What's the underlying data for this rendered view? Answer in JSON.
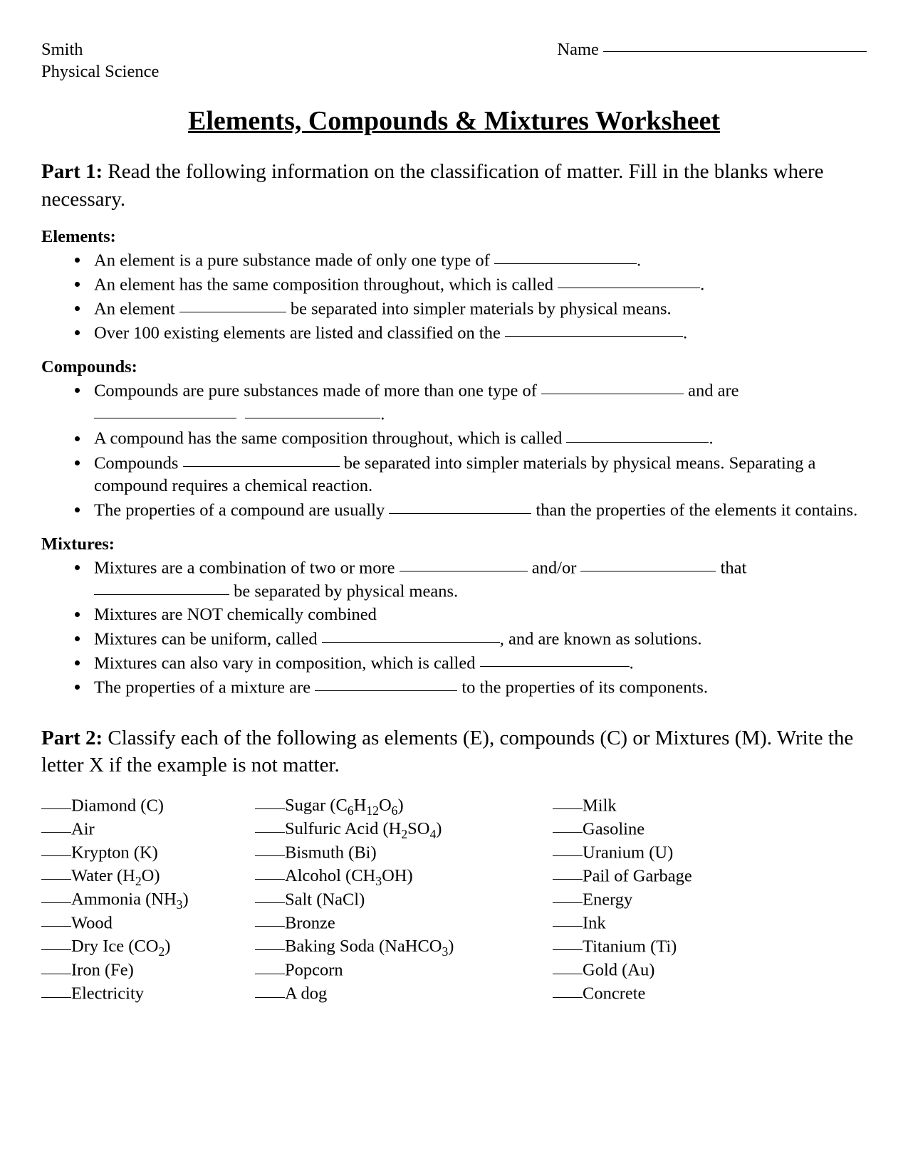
{
  "header": {
    "teacher": "Smith",
    "course": "Physical Science",
    "name_label": "Name"
  },
  "title": "Elements, Compounds & Mixtures Worksheet",
  "part1": {
    "label": "Part 1:",
    "intro": "Read the following information on the classification of matter.  Fill in the blanks where necessary."
  },
  "elements": {
    "heading": "Elements:",
    "b1_a": "An element is a pure substance made of only one type of ",
    "b1_c": ".",
    "b2_a": "An element has the same composition throughout, which is called ",
    "b2_c": ".",
    "b3_a": "An element ",
    "b3_c": " be separated into simpler materials by physical means.",
    "b4_a": "Over 100 existing elements are listed and classified on the ",
    "b4_c": "."
  },
  "compounds": {
    "heading": "Compounds:",
    "b1_a": "Compounds are pure substances made of more than one type of ",
    "b1_c": " and are ",
    "b1_e": ".",
    "b2_a": "A compound has the same composition throughout, which is called ",
    "b2_c": ".",
    "b3_a": "Compounds ",
    "b3_c": " be separated into simpler materials by physical means. Separating a compound requires a chemical reaction.",
    "b4_a": "The properties of a compound are usually ",
    "b4_c": " than the properties of the elements it contains."
  },
  "mixtures": {
    "heading": "Mixtures:",
    "b1_a": "Mixtures are a combination of two or more ",
    "b1_c": " and/or ",
    "b1_e": " that ",
    "b1_g": " be separated by physical means.",
    "b2": "Mixtures are NOT chemically combined",
    "b3_a": "Mixtures can be uniform, called ",
    "b3_c": ", and are known as solutions.",
    "b4_a": "Mixtures can also vary in composition, which is called ",
    "b4_c": ".",
    "b5_a": "The properties of a mixture are ",
    "b5_c": " to the properties of its components."
  },
  "part2": {
    "label": "Part 2:",
    "intro": "Classify each of the following as elements (E), compounds (C) or Mixtures (M).  Write the letter X if the example is not matter.",
    "col1": [
      {
        "html": "Diamond (C)"
      },
      {
        "html": "Air"
      },
      {
        "html": "Krypton (K)"
      },
      {
        "html": "Water (H<sub>2</sub>O)"
      },
      {
        "html": "Ammonia (NH<sub>3</sub>)"
      },
      {
        "html": "Wood"
      },
      {
        "html": "Dry Ice (CO<sub>2</sub>)"
      },
      {
        "html": "Iron (Fe)"
      },
      {
        "html": "Electricity"
      }
    ],
    "col2": [
      {
        "html": "Sugar (C<sub>6</sub>H<sub>12</sub>O<sub>6</sub>)"
      },
      {
        "html": "Sulfuric Acid (H<sub>2</sub>SO<sub>4</sub>)"
      },
      {
        "html": "Bismuth (Bi)"
      },
      {
        "html": "Alcohol (CH<sub>3</sub>OH)"
      },
      {
        "html": "Salt (NaCl)"
      },
      {
        "html": "Bronze"
      },
      {
        "html": "Baking Soda (NaHCO<sub>3</sub>)"
      },
      {
        "html": "Popcorn"
      },
      {
        "html": "A dog"
      }
    ],
    "col3": [
      {
        "html": "Milk"
      },
      {
        "html": "Gasoline"
      },
      {
        "html": "Uranium (U)"
      },
      {
        "html": "Pail of Garbage"
      },
      {
        "html": "Energy"
      },
      {
        "html": "Ink"
      },
      {
        "html": "Titanium (Ti)"
      },
      {
        "html": "Gold (Au)"
      },
      {
        "html": "Concrete"
      }
    ]
  }
}
